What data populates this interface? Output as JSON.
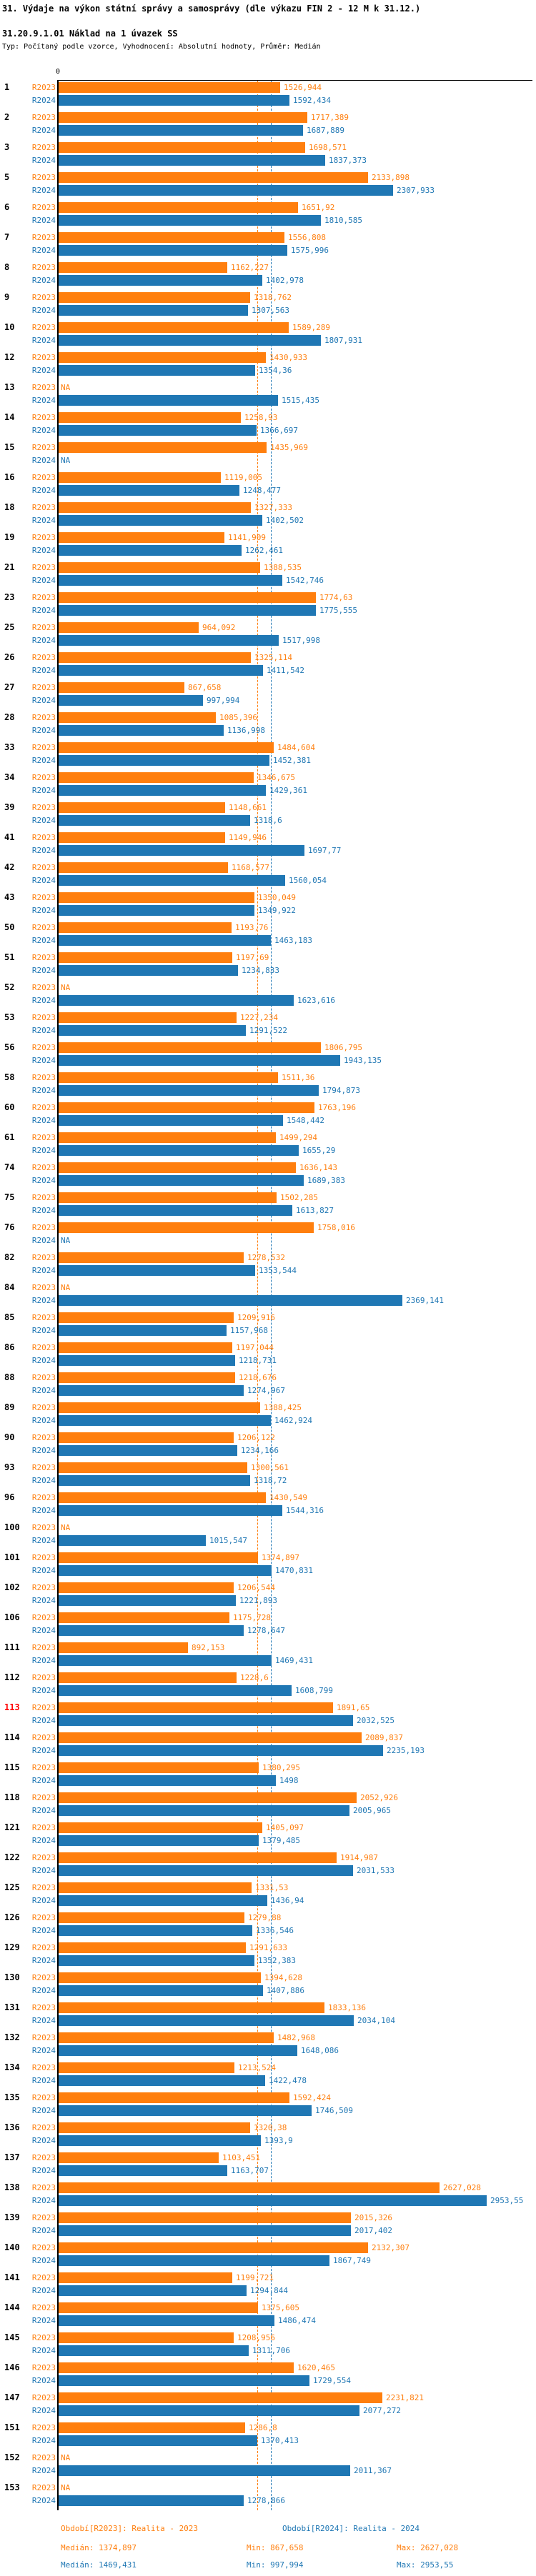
{
  "header": {
    "title": "31. Výdaje na výkon státní správy a samosprávy (dle výkazu FIN 2 - 12 M k 31.12.)",
    "subtitle": "31.20.9.1.01 Náklad na 1 úvazek SS",
    "meta": "Typ: Počítaný podle vzorce, Vyhodnocení: Absolutní hodnoty, Průměr: Medián"
  },
  "chart_data": {
    "type": "bar",
    "orientation": "horizontal",
    "series_labels": {
      "r2023": "R2023",
      "r2024": "R2024"
    },
    "colors": {
      "r2023": "#ff7f0e",
      "r2024": "#1f77b4",
      "highlight_id": "#ff0000",
      "id_default": "#000000"
    },
    "axis": {
      "zero_tick": "0",
      "xmin": 0,
      "xmax_implied": 3300
    },
    "na_label": "NA",
    "medians": {
      "r2023": "1374,897",
      "r2024": "1469,431"
    },
    "highlighted_ids": [
      "113"
    ],
    "legend_position": "bottom",
    "grid": "off",
    "rows": [
      {
        "id": "1",
        "v2023": "1526,944",
        "v2024": "1592,434"
      },
      {
        "id": "2",
        "v2023": "1717,389",
        "v2024": "1687,889"
      },
      {
        "id": "3",
        "v2023": "1698,571",
        "v2024": "1837,373"
      },
      {
        "id": "5",
        "v2023": "2133,898",
        "v2024": "2307,933"
      },
      {
        "id": "6",
        "v2023": "1651,92",
        "v2024": "1810,585"
      },
      {
        "id": "7",
        "v2023": "1556,808",
        "v2024": "1575,996"
      },
      {
        "id": "8",
        "v2023": "1162,227",
        "v2024": "1402,978"
      },
      {
        "id": "9",
        "v2023": "1318,762",
        "v2024": "1307,563"
      },
      {
        "id": "10",
        "v2023": "1589,289",
        "v2024": "1807,931"
      },
      {
        "id": "12",
        "v2023": "1430,933",
        "v2024": "1354,36"
      },
      {
        "id": "13",
        "v2023": "NA",
        "v2024": "1515,435"
      },
      {
        "id": "14",
        "v2023": "1258,93",
        "v2024": "1366,697"
      },
      {
        "id": "15",
        "v2023": "1435,969",
        "v2024": "NA"
      },
      {
        "id": "16",
        "v2023": "1119,005",
        "v2024": "1248,477"
      },
      {
        "id": "18",
        "v2023": "1327,333",
        "v2024": "1402,502"
      },
      {
        "id": "19",
        "v2023": "1141,909",
        "v2024": "1262,461"
      },
      {
        "id": "21",
        "v2023": "1388,535",
        "v2024": "1542,746"
      },
      {
        "id": "23",
        "v2023": "1774,63",
        "v2024": "1775,555"
      },
      {
        "id": "25",
        "v2023": "964,092",
        "v2024": "1517,998"
      },
      {
        "id": "26",
        "v2023": "1325,114",
        "v2024": "1411,542"
      },
      {
        "id": "27",
        "v2023": "867,658",
        "v2024": "997,994"
      },
      {
        "id": "28",
        "v2023": "1085,396",
        "v2024": "1136,998"
      },
      {
        "id": "33",
        "v2023": "1484,604",
        "v2024": "1452,381"
      },
      {
        "id": "34",
        "v2023": "1346,675",
        "v2024": "1429,361"
      },
      {
        "id": "39",
        "v2023": "1148,661",
        "v2024": "1318,6"
      },
      {
        "id": "41",
        "v2023": "1149,946",
        "v2024": "1697,77"
      },
      {
        "id": "42",
        "v2023": "1168,577",
        "v2024": "1560,054"
      },
      {
        "id": "43",
        "v2023": "1350,049",
        "v2024": "1349,922"
      },
      {
        "id": "50",
        "v2023": "1193,76",
        "v2024": "1463,183"
      },
      {
        "id": "51",
        "v2023": "1197,69",
        "v2024": "1234,833"
      },
      {
        "id": "52",
        "v2023": "NA",
        "v2024": "1623,616"
      },
      {
        "id": "53",
        "v2023": "1227,234",
        "v2024": "1291,522"
      },
      {
        "id": "56",
        "v2023": "1806,795",
        "v2024": "1943,135"
      },
      {
        "id": "58",
        "v2023": "1511,36",
        "v2024": "1794,873"
      },
      {
        "id": "60",
        "v2023": "1763,196",
        "v2024": "1548,442"
      },
      {
        "id": "61",
        "v2023": "1499,294",
        "v2024": "1655,29"
      },
      {
        "id": "74",
        "v2023": "1636,143",
        "v2024": "1689,383"
      },
      {
        "id": "75",
        "v2023": "1502,285",
        "v2024": "1613,827"
      },
      {
        "id": "76",
        "v2023": "1758,016",
        "v2024": "NA"
      },
      {
        "id": "82",
        "v2023": "1278,532",
        "v2024": "1353,544"
      },
      {
        "id": "84",
        "v2023": "NA",
        "v2024": "2369,141"
      },
      {
        "id": "85",
        "v2023": "1209,916",
        "v2024": "1157,968"
      },
      {
        "id": "86",
        "v2023": "1197,044",
        "v2024": "1218,731"
      },
      {
        "id": "88",
        "v2023": "1218,676",
        "v2024": "1274,967"
      },
      {
        "id": "89",
        "v2023": "1388,425",
        "v2024": "1462,924"
      },
      {
        "id": "90",
        "v2023": "1206,122",
        "v2024": "1234,166"
      },
      {
        "id": "93",
        "v2023": "1300,561",
        "v2024": "1318,72"
      },
      {
        "id": "96",
        "v2023": "1430,549",
        "v2024": "1544,316"
      },
      {
        "id": "100",
        "v2023": "NA",
        "v2024": "1015,547"
      },
      {
        "id": "101",
        "v2023": "1374,897",
        "v2024": "1470,831"
      },
      {
        "id": "102",
        "v2023": "1206,544",
        "v2024": "1221,893"
      },
      {
        "id": "106",
        "v2023": "1175,728",
        "v2024": "1278,647"
      },
      {
        "id": "111",
        "v2023": "892,153",
        "v2024": "1469,431"
      },
      {
        "id": "112",
        "v2023": "1228,6",
        "v2024": "1608,799"
      },
      {
        "id": "113",
        "v2023": "1891,65",
        "v2024": "2032,525"
      },
      {
        "id": "114",
        "v2023": "2089,837",
        "v2024": "2235,193"
      },
      {
        "id": "115",
        "v2023": "1380,295",
        "v2024": "1498"
      },
      {
        "id": "118",
        "v2023": "2052,926",
        "v2024": "2005,965"
      },
      {
        "id": "121",
        "v2023": "1405,097",
        "v2024": "1379,485"
      },
      {
        "id": "122",
        "v2023": "1914,987",
        "v2024": "2031,533"
      },
      {
        "id": "125",
        "v2023": "1331,53",
        "v2024": "1436,94"
      },
      {
        "id": "126",
        "v2023": "1279,88",
        "v2024": "1336,546"
      },
      {
        "id": "129",
        "v2023": "1291,633",
        "v2024": "1352,383"
      },
      {
        "id": "130",
        "v2023": "1394,628",
        "v2024": "1407,886"
      },
      {
        "id": "131",
        "v2023": "1833,136",
        "v2024": "2034,104"
      },
      {
        "id": "132",
        "v2023": "1482,968",
        "v2024": "1648,086"
      },
      {
        "id": "134",
        "v2023": "1213,524",
        "v2024": "1422,478"
      },
      {
        "id": "135",
        "v2023": "1592,424",
        "v2024": "1746,509"
      },
      {
        "id": "136",
        "v2023": "1320,38",
        "v2024": "1393,9"
      },
      {
        "id": "137",
        "v2023": "1103,451",
        "v2024": "1163,707"
      },
      {
        "id": "138",
        "v2023": "2627,028",
        "v2024": "2953,55"
      },
      {
        "id": "139",
        "v2023": "2015,326",
        "v2024": "2017,402"
      },
      {
        "id": "140",
        "v2023": "2132,307",
        "v2024": "1867,749"
      },
      {
        "id": "141",
        "v2023": "1199,721",
        "v2024": "1294,844"
      },
      {
        "id": "144",
        "v2023": "1375,605",
        "v2024": "1486,474"
      },
      {
        "id": "145",
        "v2023": "1208,956",
        "v2024": "1311,706"
      },
      {
        "id": "146",
        "v2023": "1620,465",
        "v2024": "1729,554"
      },
      {
        "id": "147",
        "v2023": "2231,821",
        "v2024": "2077,272"
      },
      {
        "id": "151",
        "v2023": "1286,8",
        "v2024": "1370,413"
      },
      {
        "id": "152",
        "v2023": "NA",
        "v2024": "2011,367"
      },
      {
        "id": "153",
        "v2023": "NA",
        "v2024": "1278,866"
      }
    ]
  },
  "footer": {
    "period_2023": "Období[R2023]: Realita - 2023",
    "period_2024": "Období[R2024]: Realita - 2024",
    "stats_2023": {
      "median": "Medián: 1374,897",
      "min": "Min: 867,658",
      "max": "Max: 2627,028"
    },
    "stats_2024": {
      "median": "Medián: 1469,431",
      "min": "Min: 997,994",
      "max": "Max: 2953,55"
    }
  }
}
